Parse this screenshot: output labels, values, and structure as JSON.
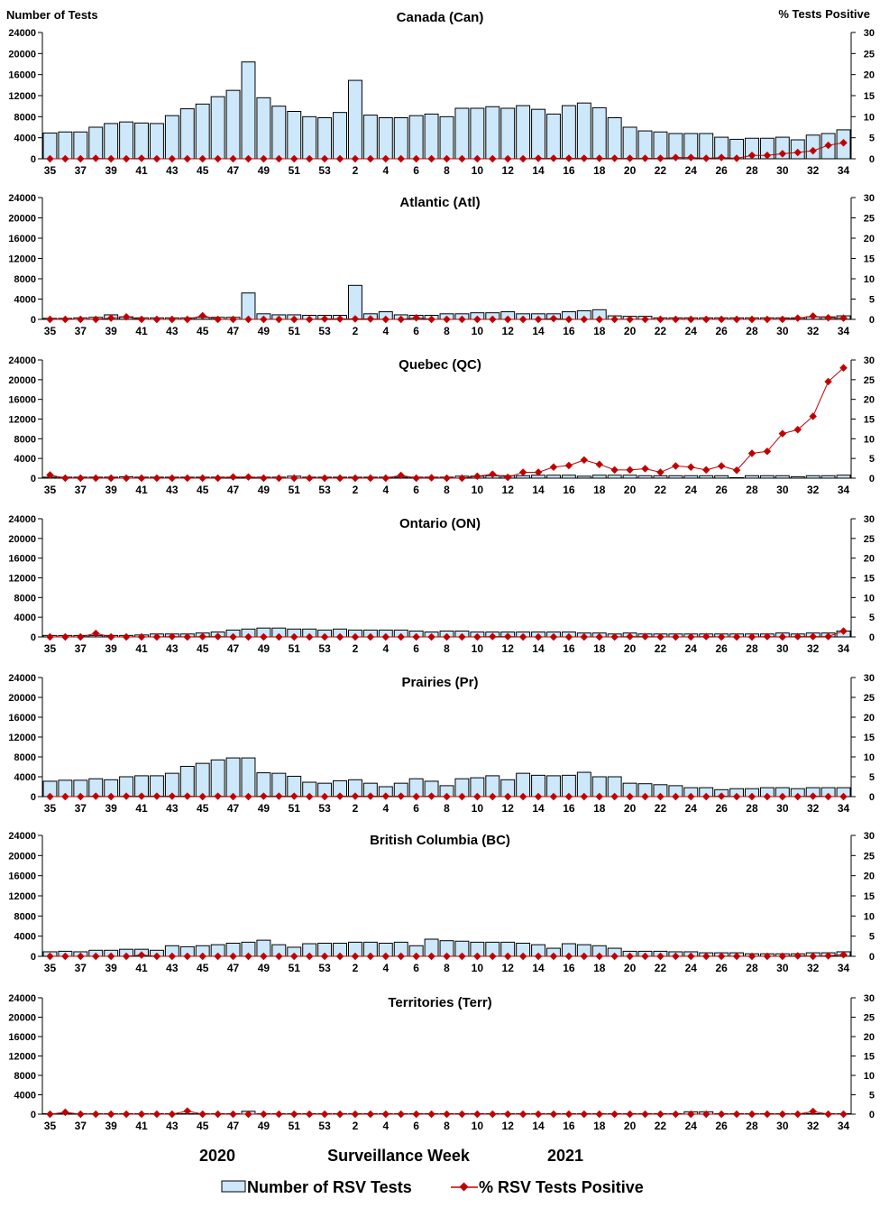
{
  "chart_data": {
    "type": "bar+line",
    "left_axis_label": "Number of Tests",
    "right_axis_label": "% Tests Positive",
    "xlabel": "Surveillance Week",
    "year_labels": [
      "2020",
      "2021"
    ],
    "left_ylim": [
      0,
      24000
    ],
    "left_ticks": [
      0,
      4000,
      8000,
      12000,
      16000,
      20000,
      24000
    ],
    "right_ylim": [
      0,
      30
    ],
    "right_ticks": [
      0,
      5,
      10,
      15,
      20,
      25,
      30
    ],
    "legend": {
      "bars": "Number of RSV Tests",
      "line": "% RSV Tests Positive",
      "position": "bottom"
    },
    "colors": {
      "bar_fill": "#cce8fa",
      "bar_stroke": "#000000",
      "line": "#c00000"
    },
    "weeks": [
      35,
      36,
      37,
      38,
      39,
      40,
      41,
      42,
      43,
      44,
      45,
      46,
      47,
      48,
      49,
      50,
      51,
      52,
      53,
      1,
      2,
      3,
      4,
      5,
      6,
      7,
      8,
      9,
      10,
      11,
      12,
      13,
      14,
      15,
      16,
      17,
      18,
      19,
      20,
      21,
      22,
      23,
      24,
      25,
      26,
      27,
      28,
      29,
      30,
      31,
      32,
      33,
      34
    ],
    "panels": [
      {
        "title": "Canada (Can)",
        "tests": [
          4900,
          5100,
          5100,
          6000,
          6700,
          7000,
          6800,
          6700,
          8200,
          9500,
          10400,
          11800,
          13000,
          18400,
          11600,
          10000,
          9000,
          8000,
          7800,
          8800,
          14900,
          8300,
          7800,
          7800,
          8200,
          8500,
          8000,
          9600,
          9600,
          9900,
          9600,
          10100,
          9400,
          8500,
          10100,
          10600,
          9700,
          7800,
          6000,
          5300,
          5100,
          4800,
          4800,
          4800,
          4100,
          3700,
          3900,
          3900,
          4100,
          3600,
          4500,
          4800,
          5500
        ],
        "percent": [
          0,
          0,
          0,
          0.1,
          0,
          0,
          0.1,
          0,
          0,
          0,
          0,
          0,
          0,
          0,
          0,
          0,
          0,
          0,
          0,
          0,
          0,
          0,
          0,
          0,
          0,
          0,
          0,
          0,
          0,
          0,
          0,
          0,
          0.1,
          0.1,
          0.1,
          0.1,
          0.1,
          0.1,
          0.1,
          0.1,
          0.1,
          0.3,
          0.3,
          0.1,
          0.3,
          0.1,
          0.8,
          0.8,
          1.2,
          1.5,
          1.9,
          3.2,
          3.8
        ]
      },
      {
        "title": "Atlantic (Atl)",
        "tests": [
          200,
          200,
          300,
          400,
          900,
          500,
          300,
          300,
          300,
          300,
          400,
          400,
          400,
          5200,
          1100,
          900,
          900,
          800,
          800,
          800,
          6700,
          1100,
          1500,
          900,
          800,
          800,
          1100,
          1100,
          1300,
          1300,
          1500,
          1100,
          1100,
          1100,
          1500,
          1700,
          1900,
          700,
          600,
          600,
          300,
          300,
          300,
          300,
          300,
          300,
          300,
          300,
          300,
          300,
          500,
          500,
          700
        ],
        "percent": [
          0,
          0,
          0,
          0,
          0.3,
          0.6,
          0,
          0,
          0,
          0,
          0.9,
          0,
          0,
          0,
          0,
          0,
          0,
          0,
          0.1,
          0.1,
          0.1,
          0.1,
          0,
          0,
          0.4,
          0,
          0,
          0,
          0,
          0,
          0,
          0,
          0,
          0.2,
          0,
          0,
          0,
          0,
          0,
          0,
          0,
          0,
          0,
          0,
          0,
          0,
          0,
          0,
          0,
          0.3,
          0.8,
          0.4,
          0.3
        ]
      },
      {
        "title": "Quebec (QC)",
        "tests": [
          200,
          200,
          200,
          200,
          200,
          300,
          200,
          200,
          200,
          200,
          200,
          200,
          200,
          200,
          200,
          200,
          400,
          200,
          200,
          200,
          200,
          200,
          200,
          200,
          200,
          200,
          200,
          400,
          400,
          500,
          500,
          500,
          600,
          600,
          600,
          400,
          600,
          600,
          600,
          500,
          500,
          500,
          500,
          500,
          500,
          100,
          500,
          500,
          500,
          300,
          500,
          500,
          600
        ],
        "percent": [
          0.8,
          0,
          0,
          0,
          0,
          0,
          0,
          0,
          0,
          0,
          0,
          0,
          0.3,
          0.3,
          0,
          0,
          0,
          0,
          0,
          0,
          0,
          0,
          0,
          0.7,
          0,
          0.1,
          0,
          0,
          0.5,
          1.0,
          0.2,
          1.5,
          1.5,
          2.8,
          3.2,
          4.6,
          3.5,
          2.1,
          2.1,
          2.4,
          1.5,
          3.1,
          2.8,
          2.1,
          3.1,
          2.0,
          6.3,
          6.8,
          11.3,
          12.3,
          15.7,
          24.5,
          28.0
        ]
      },
      {
        "title": "Ontario (ON)",
        "tests": [
          300,
          300,
          300,
          300,
          300,
          300,
          400,
          600,
          600,
          600,
          800,
          1000,
          1400,
          1600,
          1800,
          1800,
          1600,
          1600,
          1400,
          1600,
          1400,
          1400,
          1400,
          1400,
          1200,
          1000,
          1200,
          1200,
          1000,
          1000,
          1000,
          1000,
          1000,
          1000,
          1000,
          800,
          800,
          600,
          800,
          600,
          600,
          600,
          600,
          600,
          600,
          600,
          600,
          600,
          800,
          600,
          800,
          800,
          1200
        ],
        "percent": [
          0,
          0,
          0,
          0.9,
          0,
          0,
          0,
          0,
          0.1,
          0,
          0.1,
          0.1,
          0,
          0,
          0,
          0,
          0,
          0,
          0,
          0,
          0,
          0,
          0,
          0,
          0,
          0,
          0,
          0,
          0,
          0.1,
          0.1,
          0,
          0,
          0,
          0,
          0,
          0,
          0,
          0.1,
          0.1,
          0,
          0,
          0,
          0.1,
          0,
          0,
          0,
          0.1,
          0,
          0.1,
          0.1,
          0.1,
          1.5
        ]
      },
      {
        "title": "Prairies (Pr)",
        "tests": [
          3100,
          3300,
          3300,
          3600,
          3400,
          4000,
          4200,
          4200,
          4700,
          6100,
          6700,
          7400,
          7800,
          7800,
          4800,
          4700,
          4100,
          2900,
          2700,
          3200,
          3400,
          2700,
          2000,
          2700,
          3600,
          3100,
          2200,
          3600,
          3800,
          4200,
          3400,
          4700,
          4300,
          4200,
          4300,
          4900,
          4000,
          4000,
          2700,
          2600,
          2400,
          2200,
          1800,
          1800,
          1400,
          1600,
          1600,
          1800,
          1800,
          1600,
          1800,
          1800,
          1800
        ],
        "percent": [
          0,
          0,
          0,
          0.1,
          0,
          0.1,
          0.1,
          0.1,
          0.1,
          0.1,
          0,
          0.1,
          0,
          0,
          0.1,
          0.1,
          0.1,
          0,
          0,
          0.1,
          0.1,
          0.1,
          0.1,
          0.1,
          0,
          0.1,
          0,
          0,
          0,
          0,
          0,
          0,
          0,
          0,
          0,
          0,
          0,
          0,
          0,
          0,
          0,
          0,
          0,
          0,
          0.1,
          0,
          0,
          0,
          0,
          0,
          0.1,
          0,
          0
        ]
      },
      {
        "title": "British Columbia (BC)",
        "tests": [
          900,
          1000,
          900,
          1200,
          1200,
          1400,
          1400,
          1200,
          2100,
          1900,
          2100,
          2300,
          2600,
          2800,
          3200,
          2300,
          1800,
          2500,
          2600,
          2600,
          2800,
          2800,
          2600,
          2800,
          2100,
          3400,
          3100,
          3000,
          2800,
          2800,
          2800,
          2600,
          2300,
          1600,
          2500,
          2300,
          2100,
          1600,
          1000,
          1000,
          1000,
          900,
          900,
          700,
          700,
          700,
          500,
          500,
          500,
          500,
          700,
          700,
          900
        ],
        "percent": [
          0,
          0,
          0,
          0,
          0,
          0,
          0.3,
          0,
          0,
          0,
          0,
          0,
          0,
          0,
          0,
          0,
          0,
          0,
          0,
          0,
          0,
          0,
          0,
          0,
          0,
          0,
          0,
          0,
          0,
          0,
          0,
          0,
          0,
          0,
          0,
          0,
          0,
          0,
          0,
          0,
          0,
          0,
          0,
          0,
          0,
          0,
          0,
          0,
          0,
          0.1,
          0,
          0.1,
          0.4
        ]
      },
      {
        "title": "Territories (Terr)",
        "tests": [
          100,
          100,
          100,
          100,
          100,
          100,
          100,
          100,
          100,
          100,
          100,
          100,
          100,
          600,
          100,
          100,
          100,
          100,
          100,
          100,
          100,
          100,
          100,
          100,
          100,
          100,
          100,
          100,
          100,
          100,
          100,
          100,
          100,
          100,
          100,
          100,
          100,
          100,
          100,
          100,
          100,
          100,
          500,
          500,
          100,
          100,
          100,
          100,
          100,
          100,
          100,
          100,
          100
        ],
        "percent": [
          0,
          0.5,
          0,
          0,
          0,
          0,
          0,
          0,
          0,
          0.8,
          0,
          0,
          0,
          0,
          0,
          0,
          0,
          0,
          0,
          0,
          0,
          0,
          0,
          0,
          0,
          0,
          0,
          0,
          0,
          0,
          0,
          0,
          0,
          0,
          0,
          0,
          0,
          0,
          0,
          0,
          0,
          0,
          0,
          0,
          0,
          0,
          0,
          0,
          0,
          0,
          0.7,
          0,
          0
        ]
      }
    ]
  }
}
